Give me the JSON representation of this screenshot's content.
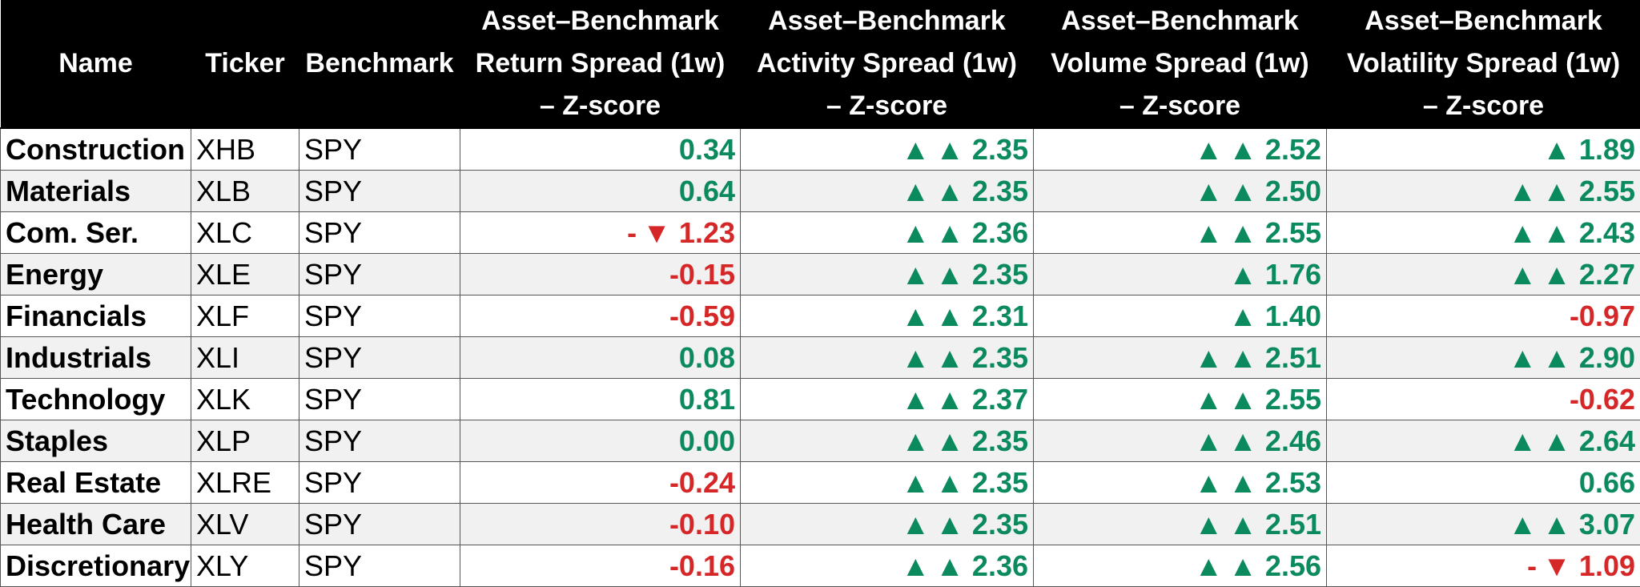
{
  "chart_data": {
    "type": "table",
    "columns": [
      "Name",
      "Ticker",
      "Benchmark",
      "Asset–Benchmark\nReturn  Spread (1w)\n– Z-score",
      "Asset–Benchmark\nActivity  Spread (1w)\n– Z-score",
      "Asset–Benchmark\nVolume Spread (1w)\n– Z-score",
      "Asset–Benchmark\nVolatility  Spread (1w)\n– Z-score"
    ],
    "rows": [
      [
        "Construction",
        "XHB",
        "SPY",
        "0.34",
        "▲ ▲ 2.35",
        "▲ ▲ 2.52",
        "▲ 1.89"
      ],
      [
        "Materials",
        "XLB",
        "SPY",
        "0.64",
        "▲ ▲ 2.35",
        "▲ ▲ 2.50",
        "▲ ▲ 2.55"
      ],
      [
        "Com. Ser.",
        "XLC",
        "SPY",
        "- ▼ 1.23",
        "▲ ▲ 2.36",
        "▲ ▲ 2.55",
        "▲ ▲ 2.43"
      ],
      [
        "Energy",
        "XLE",
        "SPY",
        "-0.15",
        "▲ ▲ 2.35",
        "▲ 1.76",
        "▲ ▲ 2.27"
      ],
      [
        "Financials",
        "XLF",
        "SPY",
        "-0.59",
        "▲ ▲ 2.31",
        "▲ 1.40",
        "-0.97"
      ],
      [
        "Industrials",
        "XLI",
        "SPY",
        "0.08",
        "▲ ▲ 2.35",
        "▲ ▲ 2.51",
        "▲ ▲ 2.90"
      ],
      [
        "Technology",
        "XLK",
        "SPY",
        "0.81",
        "▲ ▲ 2.37",
        "▲ ▲ 2.55",
        "-0.62"
      ],
      [
        " Staples",
        "XLP",
        "SPY",
        "0.00",
        "▲ ▲ 2.35",
        "▲ ▲ 2.46",
        "▲ ▲ 2.64"
      ],
      [
        "Real Estate",
        "XLRE",
        "SPY",
        "-0.24",
        "▲ ▲ 2.35",
        "▲ ▲ 2.53",
        "0.66"
      ],
      [
        "Health Care",
        "XLV",
        "SPY",
        "-0.10",
        "▲ ▲ 2.35",
        "▲ ▲ 2.51",
        "▲ ▲ 3.07"
      ],
      [
        "Discretionary",
        "XLY",
        "SPY",
        "-0.16",
        "▲ ▲ 2.36",
        "▲ ▲ 2.56",
        "- ▼ 1.09"
      ]
    ],
    "z_values": [
      [
        0.34,
        2.35,
        2.52,
        1.89
      ],
      [
        0.64,
        2.35,
        2.5,
        2.55
      ],
      [
        -1.23,
        2.36,
        2.55,
        2.43
      ],
      [
        -0.15,
        2.35,
        1.76,
        2.27
      ],
      [
        -0.59,
        2.31,
        1.4,
        -0.97
      ],
      [
        0.08,
        2.35,
        2.51,
        2.9
      ],
      [
        0.81,
        2.37,
        2.55,
        -0.62
      ],
      [
        0.0,
        2.35,
        2.46,
        2.64
      ],
      [
        -0.24,
        2.35,
        2.53,
        0.66
      ],
      [
        -0.1,
        2.35,
        2.51,
        3.07
      ],
      [
        -0.16,
        2.36,
        2.56,
        -1.09
      ]
    ],
    "value_colors": {
      "positive": "#0b8a5e",
      "negative": "#d62728"
    },
    "header_background": "#000000",
    "header_text_color": "#ffffff",
    "stripe_background": "#f1f1f1"
  }
}
